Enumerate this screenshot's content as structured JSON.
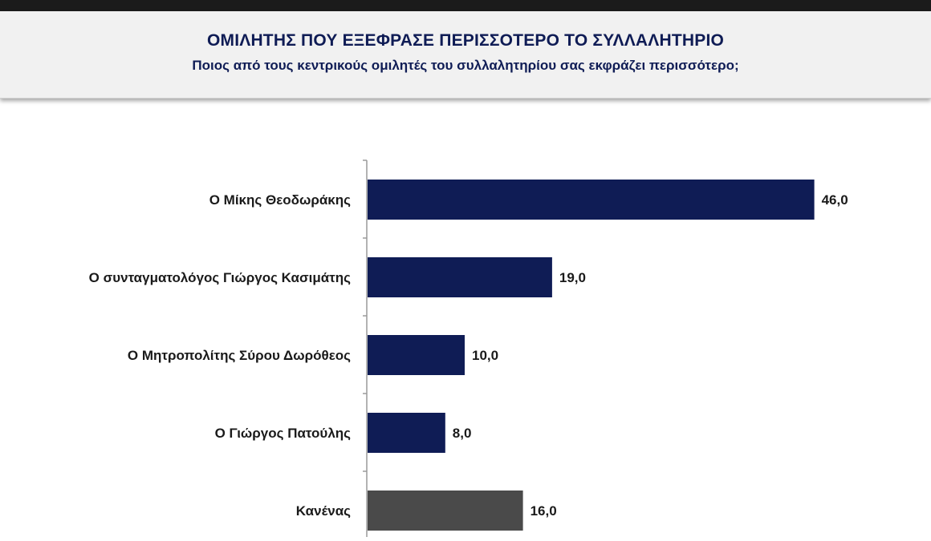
{
  "header": {
    "title": "ΟΜΙΛΗΤΗΣ ΠΟΥ ΕΞΕΦΡΑΣΕ ΠΕΡΙΣΣΟΤΕΡΟ ΤΟ ΣΥΛΛΑΛΗΤΗΡΙΟ",
    "subtitle": "Ποιος από τους κεντρικούς ομιλητές του συλλαλητηρίου σας εκφράζει περισσότερο;"
  },
  "colors": {
    "primary_bar": "#0f1c55",
    "none_bar": "#4a4a4a",
    "title_text": "#0f1c55",
    "axis": "#9a9a9a"
  },
  "chart_data": {
    "type": "bar",
    "orientation": "horizontal",
    "categories": [
      "Ο Μίκης Θεοδωράκης",
      "Ο συνταγματολόγος Γιώργος Κασιμάτης",
      "Ο Μητροπολίτης Σύρου Δωρόθεος",
      "Ο Γιώργος Πατούλης",
      "Κανένας"
    ],
    "values": [
      46.0,
      19.0,
      10.0,
      8.0,
      16.0
    ],
    "value_labels": [
      "46,0",
      "19,0",
      "10,0",
      "8,0",
      "16,0"
    ],
    "bar_colors": [
      "#0f1c55",
      "#0f1c55",
      "#0f1c55",
      "#0f1c55",
      "#4a4a4a"
    ],
    "xlim": [
      0,
      50
    ],
    "grid": false,
    "legend": "none"
  }
}
